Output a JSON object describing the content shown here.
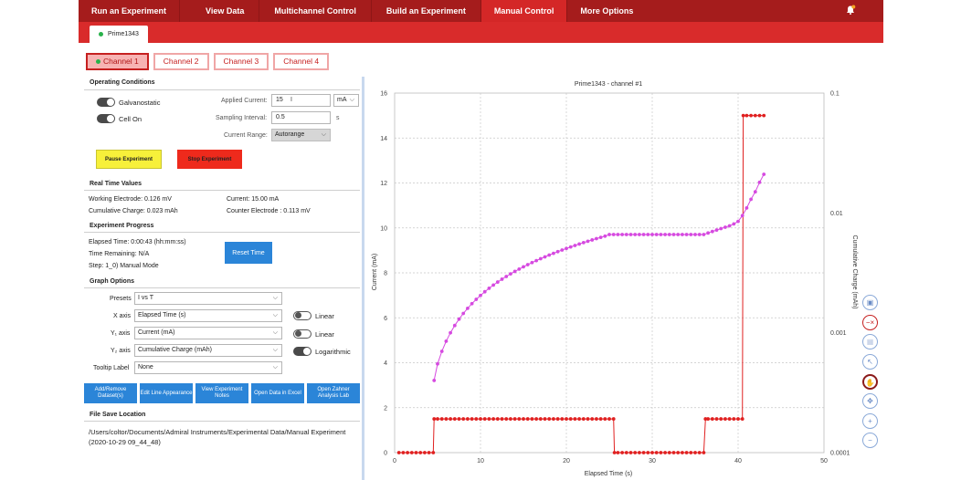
{
  "nav": {
    "items": [
      "Run an Experiment",
      "View Data",
      "Multichannel Control",
      "Build an Experiment",
      "Manual Control",
      "More Options"
    ],
    "active_index": 4
  },
  "device_tab": {
    "label": "Prime1343"
  },
  "channel_tabs": [
    "Channel 1",
    "Channel 2",
    "Channel 3",
    "Channel 4"
  ],
  "operating": {
    "title": "Operating Conditions",
    "galvanostatic": "Galvanostatic",
    "cell_on": "Cell On",
    "applied_current_label": "Applied Current:",
    "applied_current_value": "15",
    "applied_current_unit": "mA",
    "sampling_label": "Sampling Interval:",
    "sampling_value": "0.5",
    "sampling_unit": "s",
    "range_label": "Current Range:",
    "range_value": "Autorange",
    "pause_label": "Pause Experiment",
    "stop_label": "Stop Experiment",
    "pause_color": "#f7f03a",
    "stop_color": "#ee2a1c"
  },
  "realtime": {
    "title": "Real Time Values",
    "working": "Working Electrode: 0.126 mV",
    "current": "Current:  15.00 mA",
    "cumulative": "Cumulative Charge:  0.023 mAh",
    "counter": "Counter Electrode :  0.113 mV"
  },
  "progress": {
    "title": "Experiment Progress",
    "elapsed": "Elapsed Time:  0:00:43 (hh:mm:ss)",
    "remaining": "Time Remaining:  N/A",
    "step": "Step:  1_0) Manual Mode",
    "reset_label": "Reset Time"
  },
  "graph_options": {
    "title": "Graph Options",
    "presets_label": "Presets",
    "presets_value": "I vs T",
    "xaxis_label": "X axis",
    "xaxis_value": "Elapsed Time (s)",
    "y1_label": "Y₁ axis",
    "y1_value": "Current (mA)",
    "y2_label": "Y₂ axis",
    "y2_value": "Cumulative Charge (mAh)",
    "tooltip_label": "Tooltip Label",
    "tooltip_value": "None",
    "x_scale": "Linear",
    "y1_scale": "Linear",
    "y2_scale": "Logarithmic"
  },
  "actions": [
    "Add/Remove Dataset(s)",
    "Edit Line Appearance",
    "View Experiment Notes",
    "Open Data in Excel",
    "Open Zahner Analysis Lab"
  ],
  "file_save": {
    "title": "File Save Location",
    "path": "/Users/coltor/Documents/Admiral Instruments/Experimental Data/Manual Experiment (2020-10-29 09_44_48)"
  },
  "chart_data": {
    "type": "line",
    "title": "Prime1343 - channel #1",
    "xlabel": "Elapsed Time (s)",
    "ylabel": "Current (mA)",
    "y2label": "Cumulative Charge (mAh)",
    "xlim": [
      0,
      50
    ],
    "ylim": [
      0,
      16
    ],
    "y2lim": [
      0.0001,
      0.1
    ],
    "y2scale": "log",
    "xticks": [
      0,
      10,
      20,
      30,
      40,
      50
    ],
    "yticks": [
      0,
      2,
      4,
      6,
      8,
      10,
      12,
      14,
      16
    ],
    "y2ticks": [
      "0.0001",
      "0.001",
      "0.01",
      "0.1"
    ],
    "grid": true,
    "series": [
      {
        "color": "#e02020",
        "axis": "y",
        "x": [
          0.5,
          1,
          1.5,
          2,
          2.5,
          3,
          3.5,
          4,
          4.5,
          4.6,
          5,
          5.5,
          6,
          6.5,
          7,
          7.5,
          8,
          8.5,
          9,
          9.5,
          10,
          10.5,
          11,
          11.5,
          12,
          12.5,
          13,
          13.5,
          14,
          14.5,
          15,
          15.5,
          16,
          16.5,
          17,
          17.5,
          18,
          18.5,
          19,
          19.5,
          20,
          20.5,
          21,
          21.5,
          22,
          22.5,
          23,
          23.5,
          24,
          24.5,
          25,
          25.5,
          25.6,
          26,
          26.5,
          27,
          27.5,
          28,
          28.5,
          29,
          29.5,
          30,
          30.5,
          31,
          31.5,
          32,
          32.5,
          33,
          33.5,
          34,
          34.5,
          35,
          35.5,
          36,
          36.2,
          36.5,
          37,
          37.5,
          38,
          38.5,
          39,
          39.5,
          40,
          40.5,
          40.6,
          41,
          41.5,
          42,
          42.5,
          43
        ],
        "y": [
          0,
          0,
          0,
          0,
          0,
          0,
          0,
          0,
          0,
          1.5,
          1.5,
          1.5,
          1.5,
          1.5,
          1.5,
          1.5,
          1.5,
          1.5,
          1.5,
          1.5,
          1.5,
          1.5,
          1.5,
          1.5,
          1.5,
          1.5,
          1.5,
          1.5,
          1.5,
          1.5,
          1.5,
          1.5,
          1.5,
          1.5,
          1.5,
          1.5,
          1.5,
          1.5,
          1.5,
          1.5,
          1.5,
          1.5,
          1.5,
          1.5,
          1.5,
          1.5,
          1.5,
          1.5,
          1.5,
          1.5,
          1.5,
          1.5,
          0,
          0,
          0,
          0,
          0,
          0,
          0,
          0,
          0,
          0,
          0,
          0,
          0,
          0,
          0,
          0,
          0,
          0,
          0,
          0,
          0,
          0,
          1.5,
          1.5,
          1.5,
          1.5,
          1.5,
          1.5,
          1.5,
          1.5,
          1.5,
          1.5,
          15,
          15,
          15,
          15,
          15,
          15
        ]
      },
      {
        "color": "#d64ae0",
        "axis": "y2",
        "x": [
          4.6,
          5,
          5.5,
          6,
          6.5,
          7,
          7.5,
          8,
          8.5,
          9,
          9.5,
          10,
          10.5,
          11,
          11.5,
          12,
          12.5,
          13,
          13.5,
          14,
          14.5,
          15,
          15.5,
          16,
          16.5,
          17,
          17.5,
          18,
          18.5,
          19,
          19.5,
          20,
          20.5,
          21,
          21.5,
          22,
          22.5,
          23,
          23.5,
          24,
          24.5,
          25,
          25.5,
          26,
          26.5,
          27,
          27.5,
          28,
          28.5,
          29,
          29.5,
          30,
          30.5,
          31,
          31.5,
          32,
          32.5,
          33,
          33.5,
          34,
          34.5,
          35,
          35.5,
          36,
          36.5,
          37,
          37.5,
          38,
          38.5,
          39,
          39.5,
          40,
          40.5,
          41,
          41.5,
          42,
          42.5,
          43
        ],
        "y": [
          0.0004,
          0.00055,
          0.0007,
          0.00085,
          0.001,
          0.00115,
          0.0013,
          0.00145,
          0.0016,
          0.00175,
          0.0019,
          0.00205,
          0.0022,
          0.00235,
          0.0025,
          0.00265,
          0.0028,
          0.00295,
          0.0031,
          0.00325,
          0.0034,
          0.00355,
          0.0037,
          0.00385,
          0.004,
          0.00415,
          0.0043,
          0.00445,
          0.0046,
          0.00475,
          0.0049,
          0.00505,
          0.0052,
          0.00535,
          0.0055,
          0.00565,
          0.0058,
          0.00595,
          0.0061,
          0.00625,
          0.0064,
          0.0066,
          0.0066,
          0.0066,
          0.0066,
          0.0066,
          0.0066,
          0.0066,
          0.0066,
          0.0066,
          0.0066,
          0.0066,
          0.0066,
          0.0066,
          0.0066,
          0.0066,
          0.0066,
          0.0066,
          0.0066,
          0.0066,
          0.0066,
          0.0066,
          0.0066,
          0.0066,
          0.0068,
          0.007,
          0.0072,
          0.0074,
          0.0076,
          0.0078,
          0.0081,
          0.0085,
          0.0095,
          0.011,
          0.013,
          0.015,
          0.018,
          0.021
        ]
      }
    ]
  },
  "tools": [
    "image-icon",
    "clear-icon",
    "grid-icon",
    "cursor-icon",
    "pan-icon",
    "move-icon",
    "zoom-in-icon",
    "zoom-out-icon"
  ]
}
